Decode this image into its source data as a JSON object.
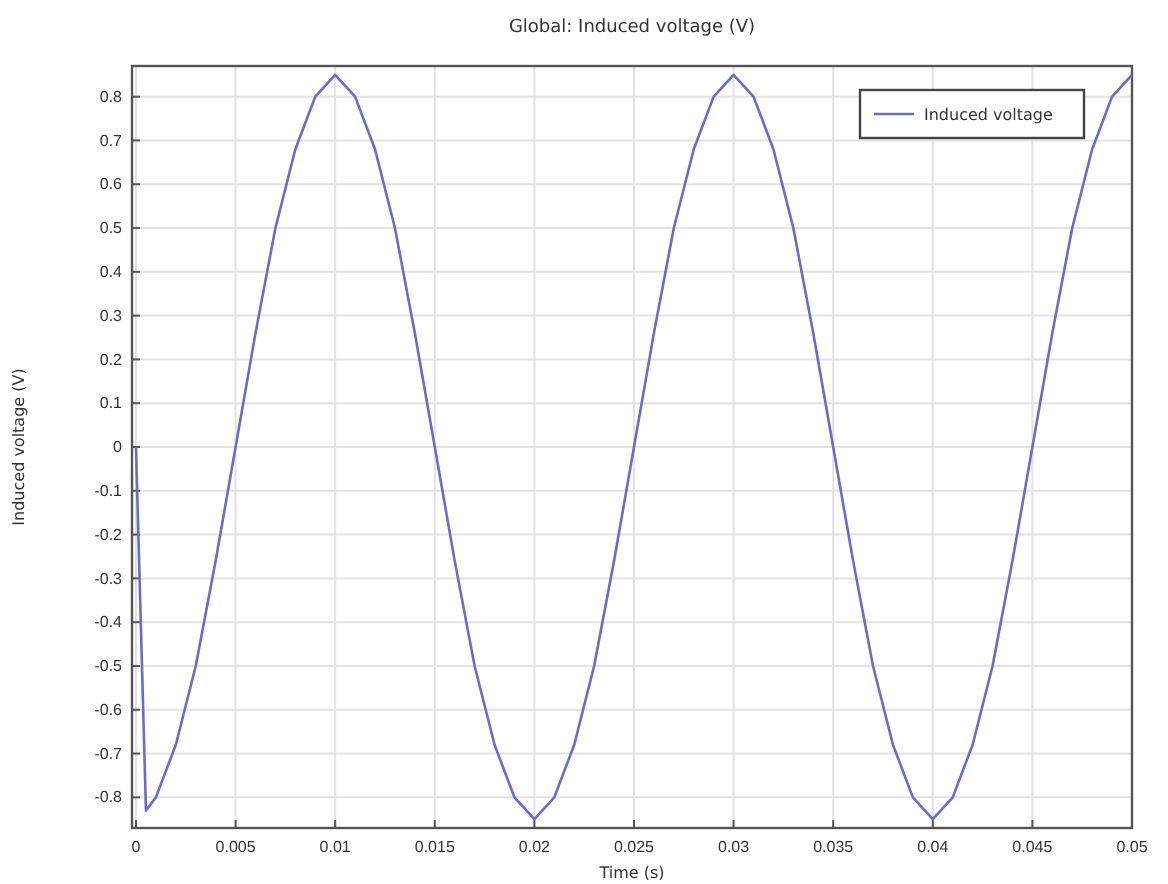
{
  "chart_data": {
    "type": "line",
    "title": "Global: Induced voltage (V)",
    "xlabel": "Time (s)",
    "ylabel": "Induced voltage (V)",
    "x": [
      0,
      0.0005,
      0.001,
      0.002,
      0.003,
      0.004,
      0.005,
      0.006,
      0.007,
      0.008,
      0.009,
      0.01,
      0.011,
      0.012,
      0.013,
      0.014,
      0.015,
      0.016,
      0.017,
      0.018,
      0.019,
      0.02,
      0.021,
      0.022,
      0.023,
      0.024,
      0.025,
      0.026,
      0.027,
      0.028,
      0.029,
      0.03,
      0.031,
      0.032,
      0.033,
      0.034,
      0.035,
      0.036,
      0.037,
      0.038,
      0.039,
      0.04,
      0.041,
      0.042,
      0.043,
      0.044,
      0.045,
      0.046,
      0.047,
      0.048,
      0.049,
      0.05
    ],
    "series": [
      {
        "name": "Induced voltage",
        "color": "#6b6bc8",
        "values": [
          0,
          -0.83,
          -0.8,
          -0.68,
          -0.5,
          -0.26,
          0,
          0.26,
          0.5,
          0.68,
          0.8,
          0.85,
          0.8,
          0.68,
          0.5,
          0.26,
          0,
          -0.26,
          -0.5,
          -0.68,
          -0.8,
          -0.85,
          -0.8,
          -0.68,
          -0.5,
          -0.26,
          0,
          0.26,
          0.5,
          0.68,
          0.8,
          0.85,
          0.8,
          0.68,
          0.5,
          0.26,
          0,
          -0.26,
          -0.5,
          -0.68,
          -0.8,
          -0.85,
          -0.8,
          -0.68,
          -0.5,
          -0.26,
          0,
          0.26,
          0.5,
          0.68,
          0.8,
          0.85
        ]
      }
    ],
    "xlim": [
      -0.0002,
      0.05
    ],
    "ylim": [
      -0.87,
      0.87
    ],
    "xticks": [
      0,
      0.005,
      0.01,
      0.015,
      0.02,
      0.025,
      0.03,
      0.035,
      0.04,
      0.045,
      0.05
    ],
    "yticks": [
      -0.8,
      -0.7,
      -0.6,
      -0.5,
      -0.4,
      -0.3,
      -0.2,
      -0.1,
      0,
      0.1,
      0.2,
      0.3,
      0.4,
      0.5,
      0.6,
      0.7,
      0.8
    ],
    "grid": true,
    "legend": "top right",
    "marker": "none",
    "line_style": "solid"
  }
}
